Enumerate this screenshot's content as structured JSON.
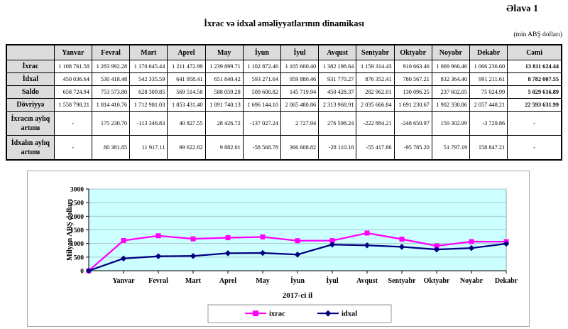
{
  "appendix": "Əlavə 1",
  "title": "İxrac və idxal əməliyyatlarının dinamikası",
  "unit_note": "(min ABŞ dolları)",
  "colors": {
    "table_header_bg": "#dcdcdc",
    "ixrac_line": "#ff00ff",
    "idxal_line": "#000080",
    "plot_bg": "#ccffff",
    "grid": "#a9c6c6"
  },
  "table": {
    "columns": [
      "",
      "Yanvar",
      "Fevral",
      "Mart",
      "Aprel",
      "May",
      "İyun",
      "İyul",
      "Avqust",
      "Sentyabr",
      "Oktyabr",
      "Noyabr",
      "Dekabr",
      "Cəmi"
    ],
    "rows": [
      {
        "label": "İxrac",
        "tall": false,
        "values": [
          "1 108 761.58",
          "1 283 992.28",
          "1 170 645.44",
          "1 211 472.99",
          "1 239 899.71",
          "1 102 872.46",
          "1 105 600.40",
          "1 382 198.64",
          "1 159 314.43",
          "910 663.46",
          "1 069 966.46",
          "1 066 236.60",
          "13 811 624.44"
        ]
      },
      {
        "label": "İdxal",
        "tall": false,
        "values": [
          "450 036.64",
          "530 418.48",
          "542 335.59",
          "641 958.41",
          "651 840.42",
          "593 271.64",
          "959 880.46",
          "931 770.27",
          "876 352.41",
          "780 567.21",
          "832 364.40",
          "991 211.61",
          "8 782 007.55"
        ]
      },
      {
        "label": "Saldo",
        "tall": false,
        "values": [
          "658 724.94",
          "753 573.80",
          "628 309.85",
          "569 514.58",
          "588 059.28",
          "509 600.82",
          "145 719.94",
          "450 428.37",
          "282 962.01",
          "130 096.25",
          "237 602.05",
          "75 024.99",
          "5 029 616.89"
        ]
      },
      {
        "label": "Dövriyyə",
        "tall": false,
        "values": [
          "1 558 798.21",
          "1 814 410.76",
          "1 712 981.03",
          "1 853 431.40",
          "1 891 740.13",
          "1 696 144.10",
          "2 065 480.86",
          "2 313 968.91",
          "2 035 666.84",
          "1 691 230.67",
          "1 902 330.86",
          "2 057 448.21",
          "22 593 631.99"
        ]
      },
      {
        "label": "İxracın aylıq artımı",
        "tall": true,
        "values": [
          "-",
          "175 230.70",
          "-113 346.83",
          "40 827.55",
          "28 426.72",
          "-137 027.24",
          "2 727.94",
          "276 598.24",
          "-222 884.21",
          "-248 650.97",
          "159 302.99",
          "-3 729.86",
          "-"
        ]
      },
      {
        "label": "İdxalın aylıq artımı",
        "tall": true,
        "values": [
          "-",
          "80 381.85",
          "11 917.11",
          "99 622.82",
          "9 882.01",
          "-58 568.78",
          "366 608.82",
          "-28 110.18",
          "-55 417.86",
          "-95 785.20",
          "51 797.19",
          "158 847.21",
          "-"
        ]
      }
    ]
  },
  "chart_data": {
    "type": "line",
    "categories": [
      "",
      "Yanvar",
      "Fevral",
      "Mart",
      "Aprel",
      "May",
      "İyun",
      "İyul",
      "Avqust",
      "Sentyabr",
      "Oktyabr",
      "Noyabr",
      "Dekabr"
    ],
    "series": [
      {
        "name": "ixrac",
        "color": "#ff00ff",
        "marker": "square",
        "values": [
          0,
          1108.76,
          1283.99,
          1170.65,
          1211.47,
          1239.9,
          1102.87,
          1105.6,
          1382.2,
          1159.31,
          910.66,
          1069.97,
          1066.24
        ]
      },
      {
        "name": "idxal",
        "color": "#000080",
        "marker": "diamond",
        "values": [
          0,
          450.04,
          530.42,
          542.34,
          641.96,
          651.84,
          593.27,
          959.88,
          931.77,
          876.35,
          780.57,
          832.36,
          991.21
        ]
      }
    ],
    "title": "",
    "xlabel": "2017-ci il",
    "ylabel": "Milyon ABŞ dolları",
    "ylim": [
      0,
      3000
    ],
    "ytick_step": 500,
    "grid": true,
    "legend_position": "bottom"
  }
}
